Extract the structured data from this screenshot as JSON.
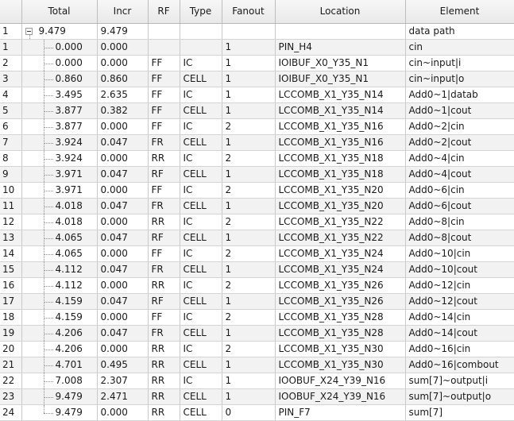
{
  "columns": [
    "",
    "Total",
    "Incr",
    "RF",
    "Type",
    "Fanout",
    "Location",
    "Element"
  ],
  "root": {
    "row": "1",
    "total": "9.479",
    "incr": "9.479",
    "rf": "",
    "type": "",
    "fanout": "",
    "location": "",
    "element": "data path"
  },
  "rows": [
    {
      "row": "1",
      "total": "0.000",
      "incr": "0.000",
      "rf": "",
      "type": "",
      "fanout": "1",
      "location": "PIN_H4",
      "element": "cin"
    },
    {
      "row": "2",
      "total": "0.000",
      "incr": "0.000",
      "rf": "FF",
      "type": "IC",
      "fanout": "1",
      "location": "IOIBUF_X0_Y35_N1",
      "element": "cin~input|i"
    },
    {
      "row": "3",
      "total": "0.860",
      "incr": "0.860",
      "rf": "FF",
      "type": "CELL",
      "fanout": "1",
      "location": "IOIBUF_X0_Y35_N1",
      "element": "cin~input|o"
    },
    {
      "row": "4",
      "total": "3.495",
      "incr": "2.635",
      "rf": "FF",
      "type": "IC",
      "fanout": "1",
      "location": "LCCOMB_X1_Y35_N14",
      "element": "Add0~1|datab"
    },
    {
      "row": "5",
      "total": "3.877",
      "incr": "0.382",
      "rf": "FF",
      "type": "CELL",
      "fanout": "1",
      "location": "LCCOMB_X1_Y35_N14",
      "element": "Add0~1|cout"
    },
    {
      "row": "6",
      "total": "3.877",
      "incr": "0.000",
      "rf": "FF",
      "type": "IC",
      "fanout": "2",
      "location": "LCCOMB_X1_Y35_N16",
      "element": "Add0~2|cin"
    },
    {
      "row": "7",
      "total": "3.924",
      "incr": "0.047",
      "rf": "FR",
      "type": "CELL",
      "fanout": "1",
      "location": "LCCOMB_X1_Y35_N16",
      "element": "Add0~2|cout"
    },
    {
      "row": "8",
      "total": "3.924",
      "incr": "0.000",
      "rf": "RR",
      "type": "IC",
      "fanout": "2",
      "location": "LCCOMB_X1_Y35_N18",
      "element": "Add0~4|cin"
    },
    {
      "row": "9",
      "total": "3.971",
      "incr": "0.047",
      "rf": "RF",
      "type": "CELL",
      "fanout": "1",
      "location": "LCCOMB_X1_Y35_N18",
      "element": "Add0~4|cout"
    },
    {
      "row": "10",
      "total": "3.971",
      "incr": "0.000",
      "rf": "FF",
      "type": "IC",
      "fanout": "2",
      "location": "LCCOMB_X1_Y35_N20",
      "element": "Add0~6|cin"
    },
    {
      "row": "11",
      "total": "4.018",
      "incr": "0.047",
      "rf": "FR",
      "type": "CELL",
      "fanout": "1",
      "location": "LCCOMB_X1_Y35_N20",
      "element": "Add0~6|cout"
    },
    {
      "row": "12",
      "total": "4.018",
      "incr": "0.000",
      "rf": "RR",
      "type": "IC",
      "fanout": "2",
      "location": "LCCOMB_X1_Y35_N22",
      "element": "Add0~8|cin"
    },
    {
      "row": "13",
      "total": "4.065",
      "incr": "0.047",
      "rf": "RF",
      "type": "CELL",
      "fanout": "1",
      "location": "LCCOMB_X1_Y35_N22",
      "element": "Add0~8|cout"
    },
    {
      "row": "14",
      "total": "4.065",
      "incr": "0.000",
      "rf": "FF",
      "type": "IC",
      "fanout": "2",
      "location": "LCCOMB_X1_Y35_N24",
      "element": "Add0~10|cin"
    },
    {
      "row": "15",
      "total": "4.112",
      "incr": "0.047",
      "rf": "FR",
      "type": "CELL",
      "fanout": "1",
      "location": "LCCOMB_X1_Y35_N24",
      "element": "Add0~10|cout"
    },
    {
      "row": "16",
      "total": "4.112",
      "incr": "0.000",
      "rf": "RR",
      "type": "IC",
      "fanout": "2",
      "location": "LCCOMB_X1_Y35_N26",
      "element": "Add0~12|cin"
    },
    {
      "row": "17",
      "total": "4.159",
      "incr": "0.047",
      "rf": "RF",
      "type": "CELL",
      "fanout": "1",
      "location": "LCCOMB_X1_Y35_N26",
      "element": "Add0~12|cout"
    },
    {
      "row": "18",
      "total": "4.159",
      "incr": "0.000",
      "rf": "FF",
      "type": "IC",
      "fanout": "2",
      "location": "LCCOMB_X1_Y35_N28",
      "element": "Add0~14|cin"
    },
    {
      "row": "19",
      "total": "4.206",
      "incr": "0.047",
      "rf": "FR",
      "type": "CELL",
      "fanout": "1",
      "location": "LCCOMB_X1_Y35_N28",
      "element": "Add0~14|cout"
    },
    {
      "row": "20",
      "total": "4.206",
      "incr": "0.000",
      "rf": "RR",
      "type": "IC",
      "fanout": "2",
      "location": "LCCOMB_X1_Y35_N30",
      "element": "Add0~16|cin"
    },
    {
      "row": "21",
      "total": "4.701",
      "incr": "0.495",
      "rf": "RR",
      "type": "CELL",
      "fanout": "1",
      "location": "LCCOMB_X1_Y35_N30",
      "element": "Add0~16|combout"
    },
    {
      "row": "22",
      "total": "7.008",
      "incr": "2.307",
      "rf": "RR",
      "type": "IC",
      "fanout": "1",
      "location": "IOOBUF_X24_Y39_N16",
      "element": "sum[7]~output|i"
    },
    {
      "row": "23",
      "total": "9.479",
      "incr": "2.471",
      "rf": "RR",
      "type": "CELL",
      "fanout": "1",
      "location": "IOOBUF_X24_Y39_N16",
      "element": "sum[7]~output|o"
    },
    {
      "row": "24",
      "total": "9.479",
      "incr": "0.000",
      "rf": "RR",
      "type": "CELL",
      "fanout": "0",
      "location": "PIN_F7",
      "element": "sum[7]"
    }
  ]
}
